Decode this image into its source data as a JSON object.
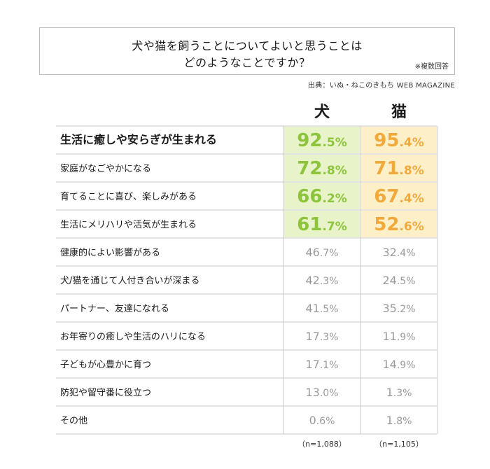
{
  "header": {
    "title_line1": "犬や猫を飼うことについてよいと思うことは",
    "title_line2": "どのようなことですか？",
    "multi_answer_note": "※複数回答",
    "source": "出典：いぬ・ねこのきもち WEB MAGAZINE"
  },
  "chart_data": {
    "type": "table",
    "columns": [
      "犬",
      "猫"
    ],
    "unit": "%",
    "rows": [
      {
        "label": "生活に癒しや安らぎが生まれる",
        "dog": 92.5,
        "cat": 95.4
      },
      {
        "label": "家庭がなごやかになる",
        "dog": 72.8,
        "cat": 71.8
      },
      {
        "label": "育てることに喜び、楽しみがある",
        "dog": 66.2,
        "cat": 67.4
      },
      {
        "label": "生活にメリハリや活気が生まれる",
        "dog": 61.7,
        "cat": 52.6
      },
      {
        "label": "健康的によい影響がある",
        "dog": 46.7,
        "cat": 32.4
      },
      {
        "label": "犬/猫を通じて人付き合いが深まる",
        "dog": 42.3,
        "cat": 24.5
      },
      {
        "label": "パートナー、友達になれる",
        "dog": 41.5,
        "cat": 35.2
      },
      {
        "label": "お年寄りの癒しや生活のハリになる",
        "dog": 17.3,
        "cat": 11.9
      },
      {
        "label": "子どもが心豊かに育つ",
        "dog": 17.1,
        "cat": 14.9
      },
      {
        "label": "防犯や留守番に役立つ",
        "dog": 13.0,
        "cat": 1.3
      },
      {
        "label": "その他",
        "dog": 0.6,
        "cat": 1.8
      }
    ],
    "highlight_rows": 4,
    "sample_sizes": [
      "（n=1,088）",
      "（n=1,105）"
    ]
  },
  "colors": {
    "dog_text": "#8cc43c",
    "dog_fill": "#e8f3c9",
    "cat_text": "#f2a93b",
    "cat_fill": "#fdf0c9",
    "gray_text": "#9a9a9a",
    "rule": "#c8c8c8"
  }
}
